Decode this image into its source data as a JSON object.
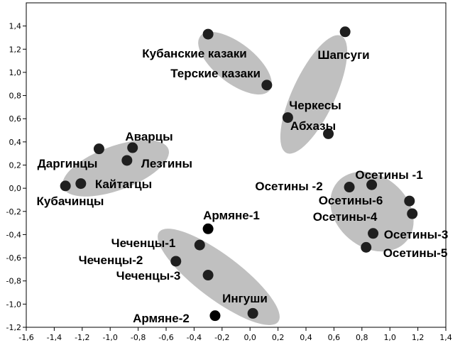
{
  "chart_data": {
    "type": "scatter",
    "title": "",
    "xlabel": "",
    "ylabel": "",
    "xlim": [
      -1.6,
      1.4
    ],
    "ylim": [
      -1.2,
      1.6
    ],
    "xticks": [
      "-1,6",
      "-1,4",
      "-1,2",
      "-1,0",
      "-0,8",
      "-0,6",
      "-0,4",
      "-0,2",
      "0,0",
      "0,2",
      "0,4",
      "0,6",
      "0,8",
      "1,0",
      "1,2",
      "1,4"
    ],
    "yticks": [
      "-1,2",
      "-1,0",
      "-0,8",
      "-0,6",
      "-0,4",
      "-0,2",
      "0,0",
      "0,2",
      "0,4",
      "0,6",
      "0,8",
      "1,0",
      "1,2",
      "1,4"
    ],
    "grid": false,
    "point_color": "#1f1f1f",
    "cluster_color": "#c0c0c0",
    "points": [
      {
        "label": "Кубанские казаки",
        "x": -0.3,
        "y": 1.33
      },
      {
        "label": "Терские казаки",
        "x": 0.12,
        "y": 0.89
      },
      {
        "label": "Шапсуги",
        "x": 0.68,
        "y": 1.35
      },
      {
        "label": "Черкесы",
        "x": 0.27,
        "y": 0.61
      },
      {
        "label": "Абхазы",
        "x": 0.56,
        "y": 0.47
      },
      {
        "label": "Аварцы",
        "x": -0.84,
        "y": 0.35
      },
      {
        "label": "Даргинцы",
        "x": -1.08,
        "y": 0.34
      },
      {
        "label": "Лезгины",
        "x": -0.88,
        "y": 0.24
      },
      {
        "label": "Кайтагцы",
        "x": -1.21,
        "y": 0.04
      },
      {
        "label": "Кубачинцы",
        "x": -1.32,
        "y": 0.02
      },
      {
        "label": "Осетины -2",
        "x": 0.71,
        "y": 0.01
      },
      {
        "label": "Осетины -1",
        "x": 0.87,
        "y": 0.03
      },
      {
        "label": "Осетины-6",
        "x": 1.14,
        "y": -0.11
      },
      {
        "label": "Осетины-4",
        "x": 1.16,
        "y": -0.22
      },
      {
        "label": "Осетины-3",
        "x": 0.88,
        "y": -0.39
      },
      {
        "label": "Осетины-5",
        "x": 0.83,
        "y": -0.51
      },
      {
        "label": "Армяне-1",
        "x": -0.3,
        "y": -0.35
      },
      {
        "label": "Чеченцы-1",
        "x": -0.36,
        "y": -0.49
      },
      {
        "label": "Чеченцы-2",
        "x": -0.53,
        "y": -0.63
      },
      {
        "label": "Чеченцы-3",
        "x": -0.3,
        "y": -0.75
      },
      {
        "label": "Ингуши",
        "x": 0.02,
        "y": -1.08
      },
      {
        "label": "Армяне-2",
        "x": -0.25,
        "y": -1.1
      }
    ]
  }
}
